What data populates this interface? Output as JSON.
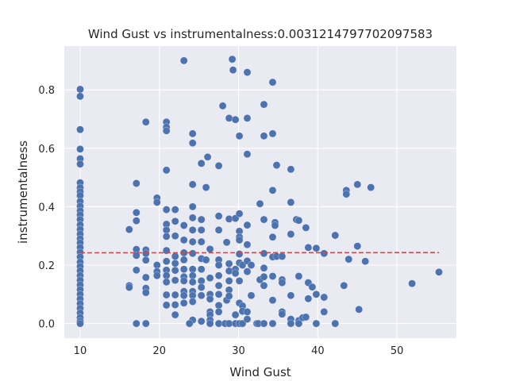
{
  "chart_data": {
    "type": "scatter",
    "title": "Wind Gust vs instrumentalness:0.0031214797702097583",
    "xlabel": "Wind Gust",
    "ylabel": "instrumentalness",
    "xlim": [
      8,
      57.5
    ],
    "ylim": [
      -0.05,
      0.95
    ],
    "xticks": [
      10,
      20,
      30,
      40,
      50
    ],
    "yticks": [
      0.0,
      0.2,
      0.4,
      0.6,
      0.8
    ],
    "xtick_labels": [
      "10",
      "20",
      "30",
      "40",
      "50"
    ],
    "ytick_labels": [
      "0.0",
      "0.2",
      "0.4",
      "0.6",
      "0.8"
    ],
    "grid": true,
    "colors": {
      "points": "#4c72b0",
      "trend": "#c44e52",
      "background": "#eaeaf2",
      "grid": "#ffffff"
    },
    "trend_line": {
      "x": [
        10,
        55.3
      ],
      "y": [
        0.242,
        0.243
      ],
      "style": "dashed"
    },
    "points": [
      [
        10,
        0.802
      ],
      [
        10,
        0.778
      ],
      [
        10,
        0.664
      ],
      [
        10,
        0.597
      ],
      [
        10,
        0.564
      ],
      [
        10,
        0.546
      ],
      [
        10,
        0.482
      ],
      [
        10,
        0.465
      ],
      [
        10,
        0.451
      ],
      [
        10,
        0.438
      ],
      [
        10,
        0.418
      ],
      [
        10,
        0.402
      ],
      [
        10,
        0.386
      ],
      [
        10,
        0.372
      ],
      [
        10,
        0.356
      ],
      [
        10,
        0.338
      ],
      [
        10,
        0.322
      ],
      [
        10,
        0.306
      ],
      [
        10,
        0.29
      ],
      [
        10,
        0.276
      ],
      [
        10,
        0.26
      ],
      [
        10,
        0.244
      ],
      [
        10,
        0.228
      ],
      [
        10,
        0.21
      ],
      [
        10,
        0.195
      ],
      [
        10,
        0.18
      ],
      [
        10,
        0.164
      ],
      [
        10,
        0.148
      ],
      [
        10,
        0.132
      ],
      [
        10,
        0.116
      ],
      [
        10,
        0.1
      ],
      [
        10,
        0.084
      ],
      [
        10,
        0.068
      ],
      [
        10,
        0.052
      ],
      [
        10,
        0.036
      ],
      [
        10,
        0.02
      ],
      [
        10,
        0.008
      ],
      [
        10,
        0.0
      ],
      [
        16.2,
        0.322
      ],
      [
        16.2,
        0.13
      ],
      [
        16.2,
        0.124
      ],
      [
        17.1,
        0.48
      ],
      [
        17.1,
        0.38
      ],
      [
        17.1,
        0.352
      ],
      [
        17.1,
        0.254
      ],
      [
        17.1,
        0.233
      ],
      [
        17.1,
        0.183
      ],
      [
        17.1,
        0.0
      ],
      [
        18.3,
        0.69
      ],
      [
        18.3,
        0.252
      ],
      [
        18.3,
        0.24
      ],
      [
        18.3,
        0.217
      ],
      [
        18.3,
        0.158
      ],
      [
        18.3,
        0.121
      ],
      [
        18.3,
        0.106
      ],
      [
        18.3,
        0.0
      ],
      [
        19.7,
        0.43
      ],
      [
        19.7,
        0.415
      ],
      [
        19.7,
        0.2
      ],
      [
        19.7,
        0.178
      ],
      [
        19.7,
        0.164
      ],
      [
        20.9,
        0.69
      ],
      [
        20.9,
        0.672
      ],
      [
        20.9,
        0.66
      ],
      [
        20.9,
        0.525
      ],
      [
        20.9,
        0.39
      ],
      [
        20.9,
        0.34
      ],
      [
        20.9,
        0.32
      ],
      [
        20.9,
        0.298
      ],
      [
        20.9,
        0.25
      ],
      [
        20.9,
        0.213
      ],
      [
        20.9,
        0.183
      ],
      [
        20.9,
        0.164
      ],
      [
        20.9,
        0.142
      ],
      [
        20.9,
        0.098
      ],
      [
        20.9,
        0.063
      ],
      [
        22,
        0.39
      ],
      [
        22,
        0.35
      ],
      [
        22,
        0.3
      ],
      [
        22,
        0.23
      ],
      [
        22,
        0.206
      ],
      [
        22,
        0.182
      ],
      [
        22,
        0.148
      ],
      [
        22,
        0.098
      ],
      [
        22,
        0.064
      ],
      [
        22,
        0.03
      ],
      [
        23.1,
        0.9
      ],
      [
        23.1,
        0.336
      ],
      [
        23.1,
        0.286
      ],
      [
        23.1,
        0.242
      ],
      [
        23.1,
        0.218
      ],
      [
        23.1,
        0.186
      ],
      [
        23.1,
        0.16
      ],
      [
        23.1,
        0.146
      ],
      [
        23.1,
        0.11
      ],
      [
        23.1,
        0.096
      ],
      [
        23.1,
        0.07
      ],
      [
        24.2,
        0.65
      ],
      [
        24.2,
        0.618
      ],
      [
        24.2,
        0.476
      ],
      [
        24.2,
        0.4
      ],
      [
        24.2,
        0.362
      ],
      [
        24.2,
        0.32
      ],
      [
        24.2,
        0.28
      ],
      [
        24.2,
        0.24
      ],
      [
        24.2,
        0.186
      ],
      [
        24.2,
        0.164
      ],
      [
        24.2,
        0.142
      ],
      [
        24.2,
        0.11
      ],
      [
        24.2,
        0.096
      ],
      [
        24.2,
        0.075
      ],
      [
        24.2,
        0.012
      ],
      [
        23.8,
        0.0
      ],
      [
        25.3,
        0.548
      ],
      [
        25.3,
        0.356
      ],
      [
        25.3,
        0.32
      ],
      [
        25.3,
        0.28
      ],
      [
        25.3,
        0.222
      ],
      [
        25.3,
        0.186
      ],
      [
        25.3,
        0.146
      ],
      [
        25.3,
        0.124
      ],
      [
        25.3,
        0.096
      ],
      [
        25.3,
        0.008
      ],
      [
        25.9,
        0.466
      ],
      [
        26.1,
        0.57
      ],
      [
        25.9,
        0.218
      ],
      [
        26.4,
        0.255
      ],
      [
        26.4,
        0.156
      ],
      [
        26.4,
        0.1
      ],
      [
        26.4,
        0.084
      ],
      [
        26.4,
        0.04
      ],
      [
        26.4,
        0.03
      ],
      [
        26.4,
        0.012
      ],
      [
        26.4,
        0.0
      ],
      [
        27.5,
        0.54
      ],
      [
        27.5,
        0.368
      ],
      [
        27.5,
        0.32
      ],
      [
        27.5,
        0.218
      ],
      [
        27.5,
        0.2
      ],
      [
        27.5,
        0.164
      ],
      [
        27.5,
        0.13
      ],
      [
        27.5,
        0.1
      ],
      [
        27.5,
        0.062
      ],
      [
        27.5,
        0.04
      ],
      [
        27.5,
        0.0
      ],
      [
        28,
        0.745
      ],
      [
        28.3,
        0.0
      ],
      [
        28.5,
        0.278
      ],
      [
        28.5,
        0.08
      ],
      [
        28.8,
        0.703
      ],
      [
        28.8,
        0.358
      ],
      [
        28.8,
        0.205
      ],
      [
        28.8,
        0.18
      ],
      [
        28.8,
        0.146
      ],
      [
        28.8,
        0.115
      ],
      [
        28.8,
        0.094
      ],
      [
        28.8,
        0.0
      ],
      [
        29.2,
        0.905
      ],
      [
        29.3,
        0.868
      ],
      [
        29.6,
        0.698
      ],
      [
        29.6,
        0.36
      ],
      [
        29.6,
        0.186
      ],
      [
        29.6,
        0.172
      ],
      [
        29.6,
        0.03
      ],
      [
        29.6,
        0.0
      ],
      [
        30.1,
        0.642
      ],
      [
        30.1,
        0.376
      ],
      [
        30.1,
        0.316
      ],
      [
        30.1,
        0.296
      ],
      [
        30.1,
        0.286
      ],
      [
        30.1,
        0.238
      ],
      [
        30.1,
        0.208
      ],
      [
        30.1,
        0.146
      ],
      [
        30.1,
        0.07
      ],
      [
        30.1,
        0.0
      ],
      [
        30.5,
        0.2
      ],
      [
        30.5,
        0.06
      ],
      [
        30.5,
        0.042
      ],
      [
        30.5,
        0.0
      ],
      [
        31.1,
        0.86
      ],
      [
        31.1,
        0.703
      ],
      [
        31.1,
        0.58
      ],
      [
        31.1,
        0.337
      ],
      [
        31.1,
        0.27
      ],
      [
        31.1,
        0.214
      ],
      [
        31.1,
        0.178
      ],
      [
        31.1,
        0.04
      ],
      [
        31.1,
        0.015
      ],
      [
        31.6,
        0.2
      ],
      [
        31.6,
        0.096
      ],
      [
        32.3,
        0.0
      ],
      [
        32.5,
        0.0
      ],
      [
        32.7,
        0.41
      ],
      [
        32.7,
        0.15
      ],
      [
        33.2,
        0.75
      ],
      [
        33.2,
        0.642
      ],
      [
        33.2,
        0.356
      ],
      [
        33.2,
        0.24
      ],
      [
        33.2,
        0.19
      ],
      [
        33.2,
        0.16
      ],
      [
        33.2,
        0.13
      ],
      [
        33.2,
        0.0
      ],
      [
        34.3,
        0.826
      ],
      [
        34.3,
        0.65
      ],
      [
        34.3,
        0.456
      ],
      [
        34.3,
        0.296
      ],
      [
        34.3,
        0.228
      ],
      [
        34.3,
        0.162
      ],
      [
        34.3,
        0.08
      ],
      [
        34.3,
        0.0
      ],
      [
        34.6,
        0.346
      ],
      [
        34.6,
        0.336
      ],
      [
        34.8,
        0.542
      ],
      [
        34.8,
        0.23
      ],
      [
        35.5,
        0.23
      ],
      [
        35.5,
        0.15
      ],
      [
        35.5,
        0.14
      ],
      [
        35.5,
        0.04
      ],
      [
        35.5,
        0.032
      ],
      [
        36.6,
        0.528
      ],
      [
        36.6,
        0.415
      ],
      [
        36.6,
        0.306
      ],
      [
        36.6,
        0.096
      ],
      [
        36.6,
        0.015
      ],
      [
        36.6,
        0.0
      ],
      [
        37.3,
        0.356
      ],
      [
        37.6,
        0.353
      ],
      [
        37.6,
        0.162
      ],
      [
        37.6,
        0.01
      ],
      [
        37.6,
        0.0
      ],
      [
        38.1,
        0.02
      ],
      [
        38.5,
        0.328
      ],
      [
        38.5,
        0.022
      ],
      [
        38.8,
        0.26
      ],
      [
        38.8,
        0.14
      ],
      [
        38.8,
        0.085
      ],
      [
        39.3,
        0.125
      ],
      [
        39.8,
        0.258
      ],
      [
        39.8,
        0.1
      ],
      [
        39.8,
        0.0
      ],
      [
        40.8,
        0.24
      ],
      [
        40.8,
        0.09
      ],
      [
        40.8,
        0.04
      ],
      [
        42.2,
        0.302
      ],
      [
        42.2,
        0.0
      ],
      [
        43.3,
        0.13
      ],
      [
        43.6,
        0.456
      ],
      [
        43.6,
        0.443
      ],
      [
        43.9,
        0.22
      ],
      [
        45,
        0.476
      ],
      [
        45,
        0.265
      ],
      [
        45.2,
        0.048
      ],
      [
        46,
        0.213
      ],
      [
        46.7,
        0.466
      ],
      [
        51.9,
        0.137
      ],
      [
        55.3,
        0.176
      ]
    ]
  }
}
